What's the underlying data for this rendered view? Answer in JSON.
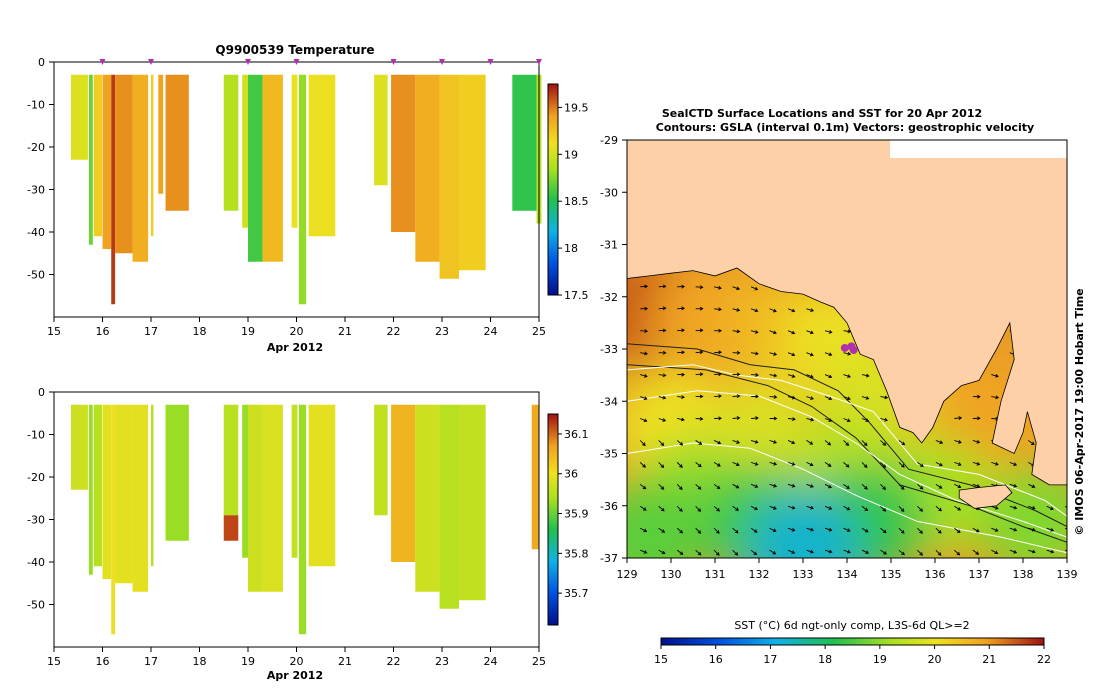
{
  "colors": {
    "land": "#fdd0a8",
    "sea_warm": "#e8a020",
    "sea_cool": "#30c040",
    "frame": "#000000",
    "marker": "#b030b0"
  },
  "chart_data": [
    {
      "id": "temperature-profile",
      "type": "heatmap",
      "title": "Q9900539  Temperature",
      "xlabel": "Apr 2012",
      "ylabel": "",
      "xlim": [
        15,
        25
      ],
      "ylim": [
        -60,
        0
      ],
      "xticks": [
        15,
        16,
        17,
        18,
        19,
        20,
        21,
        22,
        23,
        24,
        25
      ],
      "yticks": [
        0,
        -10,
        -20,
        -30,
        -40,
        -50
      ],
      "profile_markers_x": [
        16,
        17,
        19,
        20,
        22,
        23,
        24,
        25
      ],
      "colorbar": {
        "min": 17.5,
        "max": 19.75,
        "ticks": [
          17.5,
          18,
          18.5,
          19,
          19.5
        ],
        "tick_labels": [
          "17.5",
          "18",
          "18.5",
          "19",
          "19.5"
        ]
      },
      "profiles": [
        {
          "x": 15.35,
          "w": 0.35,
          "top": -3,
          "bottom": -23,
          "value": 19.05
        },
        {
          "x": 15.72,
          "w": 0.08,
          "top": -3,
          "bottom": -43,
          "value": 18.7
        },
        {
          "x": 15.82,
          "w": 0.17,
          "top": -3,
          "bottom": -41,
          "value": 19.2
        },
        {
          "x": 16.0,
          "w": 0.18,
          "top": -3,
          "bottom": -44,
          "value": 19.4
        },
        {
          "x": 16.18,
          "w": 0.08,
          "top": -3,
          "bottom": -57,
          "value": 19.65
        },
        {
          "x": 16.26,
          "w": 0.36,
          "top": -3,
          "bottom": -45,
          "value": 19.45
        },
        {
          "x": 16.62,
          "w": 0.32,
          "top": -3,
          "bottom": -47,
          "value": 19.35
        },
        {
          "x": 17.0,
          "w": 0.05,
          "top": -3,
          "bottom": -41,
          "value": 19.2
        },
        {
          "x": 17.15,
          "w": 0.1,
          "top": -3,
          "bottom": -31,
          "value": 19.4
        },
        {
          "x": 17.3,
          "w": 0.48,
          "top": -3,
          "bottom": -35,
          "value": 19.45
        },
        {
          "x": 18.5,
          "w": 0.3,
          "top": -3,
          "bottom": -35,
          "value": 18.9
        },
        {
          "x": 18.88,
          "w": 0.12,
          "top": -3,
          "bottom": -39,
          "value": 19.0
        },
        {
          "x": 19.0,
          "w": 0.3,
          "top": -3,
          "bottom": -47,
          "value": 18.6
        },
        {
          "x": 19.3,
          "w": 0.42,
          "top": -3,
          "bottom": -47,
          "value": 19.3
        },
        {
          "x": 19.9,
          "w": 0.12,
          "top": -3,
          "bottom": -39,
          "value": 19.1
        },
        {
          "x": 20.05,
          "w": 0.15,
          "top": -3,
          "bottom": -57,
          "value": 18.8
        },
        {
          "x": 20.25,
          "w": 0.55,
          "top": -3,
          "bottom": -41,
          "value": 19.1
        },
        {
          "x": 21.6,
          "w": 0.28,
          "top": -3,
          "bottom": -29,
          "value": 19.05
        },
        {
          "x": 21.95,
          "w": 0.5,
          "top": -3,
          "bottom": -40,
          "value": 19.45
        },
        {
          "x": 22.45,
          "w": 0.5,
          "top": -3,
          "bottom": -47,
          "value": 19.35
        },
        {
          "x": 22.95,
          "w": 0.4,
          "top": -3,
          "bottom": -51,
          "value": 19.25
        },
        {
          "x": 23.35,
          "w": 0.55,
          "top": -3,
          "bottom": -49,
          "value": 19.2
        },
        {
          "x": 24.45,
          "w": 0.5,
          "top": -3,
          "bottom": -35,
          "value": 18.55
        },
        {
          "x": 24.95,
          "w": 0.1,
          "top": -3,
          "bottom": -38,
          "value": 18.9
        }
      ]
    },
    {
      "id": "salinity-profile",
      "type": "heatmap",
      "title": "",
      "xlabel": "Apr 2012",
      "ylabel": "",
      "xlim": [
        15,
        25
      ],
      "ylim": [
        -60,
        0
      ],
      "xticks": [
        15,
        16,
        17,
        18,
        19,
        20,
        21,
        22,
        23,
        24,
        25
      ],
      "yticks": [
        0,
        -10,
        -20,
        -30,
        -40,
        -50
      ],
      "colorbar": {
        "min": 35.62,
        "max": 36.15,
        "ticks": [
          35.7,
          35.8,
          35.9,
          36,
          36.1
        ],
        "tick_labels": [
          "35.7",
          "35.8",
          "35.9",
          "36",
          "36.1"
        ]
      },
      "profiles": [
        {
          "x": 15.35,
          "w": 0.35,
          "top": -3,
          "bottom": -23,
          "value": 35.97
        },
        {
          "x": 15.72,
          "w": 0.08,
          "top": -3,
          "bottom": -43,
          "value": 35.93
        },
        {
          "x": 15.82,
          "w": 0.17,
          "top": -3,
          "bottom": -41,
          "value": 35.95
        },
        {
          "x": 16.0,
          "w": 0.18,
          "top": -3,
          "bottom": -44,
          "value": 35.99
        },
        {
          "x": 16.18,
          "w": 0.08,
          "top": -3,
          "bottom": -57,
          "value": 36.0
        },
        {
          "x": 16.26,
          "w": 0.36,
          "top": -3,
          "bottom": -45,
          "value": 35.99
        },
        {
          "x": 16.62,
          "w": 0.32,
          "top": -3,
          "bottom": -47,
          "value": 35.99
        },
        {
          "x": 17.0,
          "w": 0.05,
          "top": -3,
          "bottom": -41,
          "value": 35.95
        },
        {
          "x": 17.3,
          "w": 0.48,
          "top": -3,
          "bottom": -35,
          "value": 35.93
        },
        {
          "x": 18.5,
          "w": 0.3,
          "top": -3,
          "bottom": -29,
          "value": 35.95
        },
        {
          "x": 18.5,
          "w": 0.3,
          "top": -29,
          "bottom": -35,
          "value": 36.12
        },
        {
          "x": 18.88,
          "w": 0.12,
          "top": -3,
          "bottom": -39,
          "value": 35.93
        },
        {
          "x": 19.0,
          "w": 0.3,
          "top": -3,
          "bottom": -47,
          "value": 35.97
        },
        {
          "x": 19.3,
          "w": 0.42,
          "top": -3,
          "bottom": -47,
          "value": 35.98
        },
        {
          "x": 19.9,
          "w": 0.12,
          "top": -3,
          "bottom": -39,
          "value": 35.96
        },
        {
          "x": 20.05,
          "w": 0.15,
          "top": -3,
          "bottom": -57,
          "value": 35.93
        },
        {
          "x": 20.25,
          "w": 0.55,
          "top": -3,
          "bottom": -41,
          "value": 35.99
        },
        {
          "x": 21.6,
          "w": 0.28,
          "top": -3,
          "bottom": -29,
          "value": 35.96
        },
        {
          "x": 21.95,
          "w": 0.5,
          "top": -3,
          "bottom": -40,
          "value": 36.05
        },
        {
          "x": 22.45,
          "w": 0.5,
          "top": -3,
          "bottom": -47,
          "value": 35.97
        },
        {
          "x": 22.95,
          "w": 0.4,
          "top": -3,
          "bottom": -51,
          "value": 35.95
        },
        {
          "x": 23.35,
          "w": 0.55,
          "top": -3,
          "bottom": -49,
          "value": 35.96
        },
        {
          "x": 24.85,
          "w": 0.15,
          "top": -3,
          "bottom": -37,
          "value": 36.06
        }
      ]
    },
    {
      "id": "sst-map",
      "type": "heatmap",
      "title": "SealCTD Surface Locations and SST for 20 Apr 2012",
      "subtitle": "Contours: GSLA (interval 0.1m) Vectors: geostrophic velocity",
      "xlim": [
        129,
        139
      ],
      "ylim": [
        -37,
        -29
      ],
      "xticks": [
        129,
        130,
        131,
        132,
        133,
        134,
        135,
        136,
        137,
        138,
        139
      ],
      "yticks": [
        -29,
        -30,
        -31,
        -32,
        -33,
        -34,
        -35,
        -36,
        -37
      ],
      "side_label": "© IMOS 06-Apr-2017 19:00 Hobart Time",
      "colorbar": {
        "label": "SST (°C) 6d ngt-only comp, L3S-6d QL>=2",
        "min": 15,
        "max": 22,
        "ticks": [
          15,
          16,
          17,
          18,
          19,
          20,
          21,
          22
        ],
        "tick_labels": [
          "15",
          "16",
          "17",
          "18",
          "19",
          "20",
          "21",
          "22"
        ]
      },
      "coastline": [
        [
          129,
          -31.65
        ],
        [
          129.5,
          -31.6
        ],
        [
          130,
          -31.55
        ],
        [
          130.5,
          -31.5
        ],
        [
          131,
          -31.6
        ],
        [
          131.5,
          -31.45
        ],
        [
          132,
          -31.75
        ],
        [
          132.5,
          -31.9
        ],
        [
          133,
          -31.95
        ],
        [
          133.4,
          -32.1
        ],
        [
          133.7,
          -32.2
        ],
        [
          134,
          -32.5
        ],
        [
          134.2,
          -32.9
        ],
        [
          134.3,
          -33.1
        ],
        [
          134.6,
          -33.2
        ],
        [
          134.9,
          -33.8
        ],
        [
          135.2,
          -34.5
        ],
        [
          135.5,
          -34.6
        ],
        [
          135.7,
          -34.8
        ],
        [
          135.95,
          -34.5
        ],
        [
          136.2,
          -34.0
        ],
        [
          136.6,
          -33.7
        ],
        [
          137.0,
          -33.6
        ],
        [
          137.4,
          -33.0
        ],
        [
          137.7,
          -32.5
        ],
        [
          137.8,
          -33.2
        ],
        [
          137.5,
          -34.0
        ],
        [
          137.3,
          -34.8
        ],
        [
          137.8,
          -35.0
        ],
        [
          138.0,
          -34.6
        ],
        [
          138.1,
          -34.2
        ],
        [
          138.3,
          -34.8
        ],
        [
          138.2,
          -35.4
        ],
        [
          138.6,
          -35.6
        ],
        [
          139,
          -35.6
        ],
        [
          139,
          -29
        ]
      ],
      "kangaroo_island": [
        [
          136.55,
          -35.7
        ],
        [
          137.0,
          -35.65
        ],
        [
          137.6,
          -35.6
        ],
        [
          137.75,
          -35.75
        ],
        [
          137.4,
          -36.0
        ],
        [
          136.9,
          -36.05
        ],
        [
          136.55,
          -35.85
        ]
      ],
      "sst_field": [
        {
          "lon": 129.5,
          "lat": -32.3,
          "value": 21.5
        },
        {
          "lon": 130.8,
          "lat": -32.5,
          "value": 20.9
        },
        {
          "lon": 132.5,
          "lat": -32.6,
          "value": 20.6
        },
        {
          "lon": 133.8,
          "lat": -32.9,
          "value": 20.0
        },
        {
          "lon": 134.7,
          "lat": -33.9,
          "value": 19.8
        },
        {
          "lon": 136.5,
          "lat": -34.9,
          "value": 20.6
        },
        {
          "lon": 137.2,
          "lat": -34.3,
          "value": 20.9
        },
        {
          "lon": 130.0,
          "lat": -34.5,
          "value": 20.0
        },
        {
          "lon": 132.0,
          "lat": -34.7,
          "value": 19.8
        },
        {
          "lon": 134.0,
          "lat": -35.3,
          "value": 19.4
        },
        {
          "lon": 136.0,
          "lat": -35.8,
          "value": 19.2
        },
        {
          "lon": 138.3,
          "lat": -36.3,
          "value": 18.9
        },
        {
          "lon": 130.5,
          "lat": -35.9,
          "value": 19.0
        },
        {
          "lon": 132.0,
          "lat": -36.3,
          "value": 18.4
        },
        {
          "lon": 133.5,
          "lat": -36.6,
          "value": 17.8
        },
        {
          "lon": 134.5,
          "lat": -36.3,
          "value": 18.3
        },
        {
          "lon": 133.0,
          "lat": -36.85,
          "value": 17.3
        },
        {
          "lon": 129.5,
          "lat": -36.6,
          "value": 18.6
        }
      ],
      "gsla_contours": [
        [
          [
            129,
            -33.4
          ],
          [
            130.5,
            -33.3
          ],
          [
            131.5,
            -33.5
          ],
          [
            132.5,
            -33.6
          ],
          [
            133.6,
            -33.9
          ],
          [
            134.6,
            -34.2
          ],
          [
            135.6,
            -35.2
          ],
          [
            137.0,
            -35.4
          ],
          [
            138.5,
            -35.9
          ],
          [
            139,
            -36.2
          ]
        ],
        [
          [
            129,
            -34.0
          ],
          [
            130.6,
            -33.8
          ],
          [
            132.0,
            -33.9
          ],
          [
            133.2,
            -34.3
          ],
          [
            134.2,
            -34.8
          ],
          [
            135.2,
            -35.4
          ],
          [
            136.5,
            -35.9
          ],
          [
            138.0,
            -36.3
          ],
          [
            139,
            -36.6
          ]
        ],
        [
          [
            129,
            -35.0
          ],
          [
            130.5,
            -34.8
          ],
          [
            131.8,
            -34.9
          ],
          [
            133.0,
            -35.3
          ],
          [
            134.2,
            -35.8
          ],
          [
            135.6,
            -36.3
          ],
          [
            137.5,
            -36.6
          ],
          [
            139,
            -36.9
          ]
        ]
      ],
      "bathymetry_lines": [
        [
          [
            129,
            -32.9
          ],
          [
            130.6,
            -33.0
          ],
          [
            131.8,
            -33.3
          ],
          [
            132.8,
            -33.4
          ],
          [
            133.8,
            -33.8
          ],
          [
            134.5,
            -34.4
          ],
          [
            135.4,
            -35.3
          ],
          [
            136.8,
            -35.6
          ],
          [
            138.3,
            -36.1
          ],
          [
            139,
            -36.4
          ]
        ],
        [
          [
            129,
            -33.3
          ],
          [
            130.8,
            -33.4
          ],
          [
            132.2,
            -33.7
          ],
          [
            133.2,
            -34.1
          ],
          [
            134.2,
            -34.7
          ],
          [
            135.2,
            -35.6
          ],
          [
            136.8,
            -36.0
          ],
          [
            138.0,
            -36.4
          ],
          [
            139,
            -36.7
          ]
        ]
      ],
      "seal_locations": [
        [
          134.1,
          -32.95
        ],
        [
          134.15,
          -33.02
        ],
        [
          133.95,
          -32.98
        ]
      ]
    }
  ]
}
